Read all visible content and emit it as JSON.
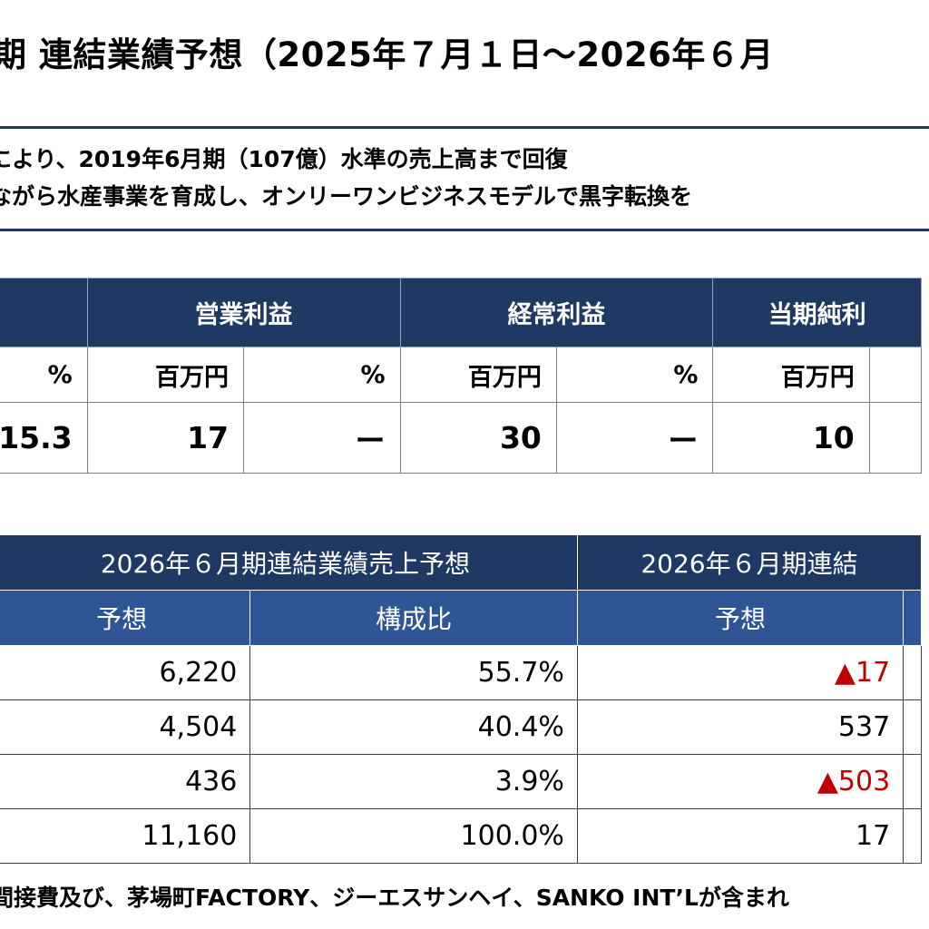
{
  "title": "期 連結業績予想（2025年７月１日～2026年６月",
  "summary": {
    "line1": "により、2019年6月期（107億）水準の売上高まで回復",
    "line2": "ながら水産事業を育成し、オンリーワンビジネスモデルで黒字転換を"
  },
  "forecast_table": {
    "headers": [
      "営業利益",
      "経常利益",
      "当期純利"
    ],
    "units": [
      "%",
      "百万円",
      "%",
      "百万円",
      "%",
      "百万円"
    ],
    "values": [
      "15.3",
      "17",
      "ー",
      "30",
      "ー",
      "10"
    ]
  },
  "segment_table": {
    "group_headers": [
      "2026年６月期連結業績売上予想",
      "2026年６月期連結"
    ],
    "sub_headers": [
      "予想",
      "構成比",
      "予想"
    ],
    "rows": [
      {
        "sales": "6,220",
        "ratio": "55.7%",
        "profit": "▲17",
        "negative": true
      },
      {
        "sales": "4,504",
        "ratio": "40.4%",
        "profit": "537",
        "negative": false
      },
      {
        "sales": "436",
        "ratio": "3.9%",
        "profit": "▲503",
        "negative": true
      },
      {
        "sales": "11,160",
        "ratio": "100.0%",
        "profit": "17",
        "negative": false
      }
    ]
  },
  "footnote": "間接費及び、茅場町FACTORY、ジーエスサンヘイ、SANKO INT’Lが含まれ"
}
